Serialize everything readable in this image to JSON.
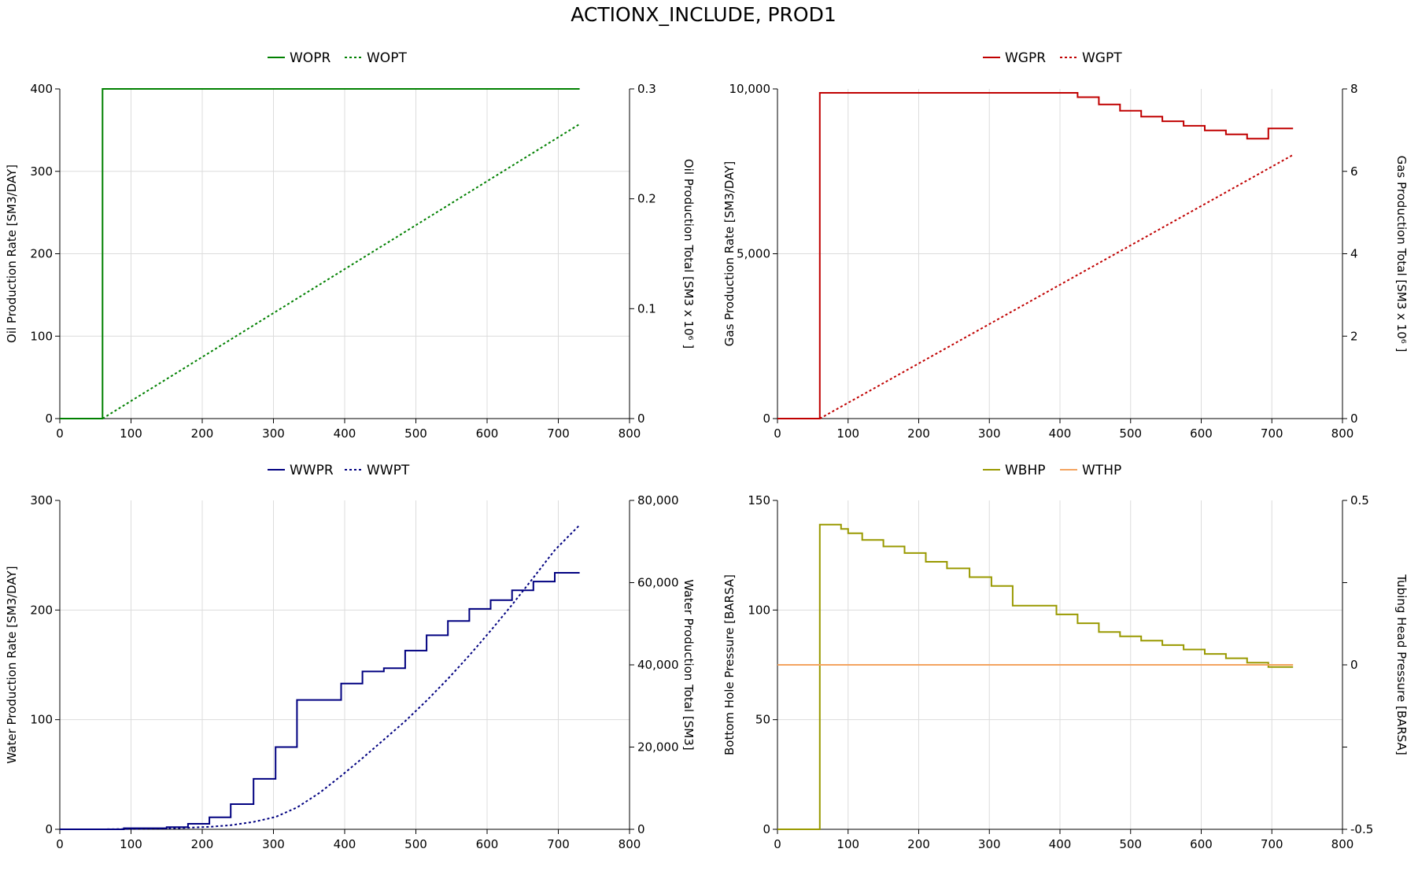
{
  "title": "ACTIONX_INCLUDE, PROD1",
  "colors": {
    "grid": "#dcdcdc",
    "axis": "#000000"
  },
  "chart_data": [
    {
      "type": "line",
      "xlim": [
        0,
        800
      ],
      "x_ticks": [
        0,
        100,
        200,
        300,
        400,
        500,
        600,
        700,
        800
      ],
      "x_tick_labels": [
        "0",
        "100",
        "200",
        "300",
        "400",
        "500",
        "600",
        "700",
        "800"
      ],
      "ylabel_left": "Oil Production Rate [SM3/DAY]",
      "ylabel_right": "Oil Production Total [SM3 x 10⁶ ]",
      "ylim_left": [
        0,
        400
      ],
      "ylim_right": [
        0,
        0.3
      ],
      "left_ticks": [
        0,
        100,
        200,
        300,
        400
      ],
      "left_tick_labels": [
        "0",
        "100",
        "200",
        "300",
        "400"
      ],
      "right_ticks": [
        0,
        0.1,
        0.2,
        0.3
      ],
      "right_tick_labels": [
        "0",
        "0.1",
        "0.2",
        "0.3"
      ],
      "legend_position": "top-center",
      "series": [
        {
          "name": "WOPR",
          "axis": "left",
          "style": "solid",
          "step": true,
          "color": "#008000",
          "x": [
            0,
            60,
            60,
            730
          ],
          "y": [
            0,
            0,
            400,
            400
          ]
        },
        {
          "name": "WOPT",
          "axis": "right",
          "style": "dotted",
          "step": false,
          "color": "#008000",
          "x": [
            60,
            730
          ],
          "y": [
            0,
            0.268
          ]
        }
      ]
    },
    {
      "type": "line",
      "xlim": [
        0,
        800
      ],
      "x_ticks": [
        0,
        100,
        200,
        300,
        400,
        500,
        600,
        700,
        800
      ],
      "x_tick_labels": [
        "0",
        "100",
        "200",
        "300",
        "400",
        "500",
        "600",
        "700",
        "800"
      ],
      "ylabel_left": "Gas Production Rate [SM3/DAY]",
      "ylabel_right": "Gas Production Total [SM3 x 10⁶ ]",
      "ylim_left": [
        0,
        10000
      ],
      "ylim_right": [
        0,
        8
      ],
      "left_ticks": [
        0,
        5000,
        10000
      ],
      "left_tick_labels": [
        "0",
        "5,000",
        "10,000"
      ],
      "right_ticks": [
        0,
        2,
        4,
        6,
        8
      ],
      "right_tick_labels": [
        "0",
        "2",
        "4",
        "6",
        "8"
      ],
      "legend_position": "top-center",
      "series": [
        {
          "name": "WGPR",
          "axis": "left",
          "style": "solid",
          "step": true,
          "color": "#c00000",
          "x": [
            0,
            60,
            60,
            425,
            425,
            455,
            455,
            485,
            485,
            515,
            515,
            545,
            545,
            575,
            575,
            605,
            605,
            635,
            635,
            665,
            665,
            695,
            695,
            730
          ],
          "y": [
            0,
            0,
            9880,
            9880,
            9750,
            9750,
            9530,
            9530,
            9340,
            9340,
            9160,
            9160,
            9020,
            9020,
            8880,
            8880,
            8740,
            8740,
            8620,
            8620,
            8490,
            8490,
            8800,
            8800
          ]
        },
        {
          "name": "WGPT",
          "axis": "right",
          "style": "dotted",
          "step": false,
          "color": "#c00000",
          "x": [
            60,
            730
          ],
          "y": [
            0,
            6.4
          ]
        }
      ]
    },
    {
      "type": "line",
      "xlim": [
        0,
        800
      ],
      "x_ticks": [
        0,
        100,
        200,
        300,
        400,
        500,
        600,
        700,
        800
      ],
      "x_tick_labels": [
        "0",
        "100",
        "200",
        "300",
        "400",
        "500",
        "600",
        "700",
        "800"
      ],
      "ylabel_left": "Water Production Rate [SM3/DAY]",
      "ylabel_right": "Water Production Total [SM3]",
      "ylim_left": [
        0,
        300
      ],
      "ylim_right": [
        0,
        80000
      ],
      "left_ticks": [
        0,
        100,
        200,
        300
      ],
      "left_tick_labels": [
        "0",
        "100",
        "200",
        "300"
      ],
      "right_ticks": [
        0,
        20000,
        40000,
        60000,
        80000
      ],
      "right_tick_labels": [
        "0",
        "20,000",
        "40,000",
        "60,000",
        "80,000"
      ],
      "legend_position": "top-center",
      "series": [
        {
          "name": "WWPR",
          "axis": "left",
          "style": "solid",
          "step": true,
          "color": "#000080",
          "x": [
            0,
            90,
            90,
            150,
            150,
            180,
            180,
            210,
            210,
            240,
            240,
            272,
            272,
            303,
            303,
            333,
            333,
            395,
            395,
            425,
            425,
            455,
            455,
            485,
            485,
            515,
            515,
            545,
            545,
            575,
            575,
            605,
            605,
            635,
            635,
            665,
            665,
            695,
            695,
            730
          ],
          "y": [
            0,
            0,
            1,
            1,
            2,
            2,
            5,
            5,
            11,
            11,
            23,
            23,
            46,
            46,
            75,
            75,
            118,
            118,
            133,
            133,
            144,
            144,
            147,
            147,
            163,
            163,
            177,
            177,
            190,
            190,
            201,
            201,
            209,
            209,
            218,
            218,
            226,
            226,
            234,
            234
          ]
        },
        {
          "name": "WWPT",
          "axis": "right",
          "style": "dotted",
          "step": false,
          "color": "#000080",
          "x": [
            60,
            150,
            210,
            240,
            272,
            303,
            333,
            365,
            395,
            425,
            455,
            485,
            515,
            545,
            575,
            605,
            635,
            665,
            695,
            730
          ],
          "y": [
            0,
            200,
            600,
            1000,
            1800,
            3000,
            5300,
            8900,
            13000,
            17300,
            21800,
            26300,
            31300,
            36600,
            42300,
            48300,
            54600,
            61200,
            67900,
            74000
          ]
        }
      ]
    },
    {
      "type": "line",
      "xlim": [
        0,
        800
      ],
      "x_ticks": [
        0,
        100,
        200,
        300,
        400,
        500,
        600,
        700,
        800
      ],
      "x_tick_labels": [
        "0",
        "100",
        "200",
        "300",
        "400",
        "500",
        "600",
        "700",
        "800"
      ],
      "ylabel_left": "Bottom Hole Pressure [BARSA]",
      "ylabel_right": "Tubing Head Pressure [BARSA]",
      "ylim_left": [
        0,
        150
      ],
      "ylim_right": [
        -0.5,
        0.5
      ],
      "left_ticks": [
        0,
        50,
        100,
        150
      ],
      "left_tick_labels": [
        "0",
        "50",
        "100",
        "150"
      ],
      "right_ticks": [
        -0.5,
        -0.25,
        0,
        0.25,
        0.5
      ],
      "right_tick_labels": [
        "-0.5",
        "",
        "0",
        "",
        "0.5"
      ],
      "legend_position": "top-center",
      "series": [
        {
          "name": "WBHP",
          "axis": "left",
          "style": "solid",
          "step": true,
          "color": "#999900",
          "x": [
            0,
            60,
            60,
            90,
            90,
            100,
            100,
            120,
            120,
            150,
            150,
            180,
            180,
            210,
            210,
            240,
            240,
            272,
            272,
            303,
            303,
            333,
            333,
            395,
            395,
            425,
            425,
            455,
            455,
            485,
            485,
            515,
            515,
            545,
            545,
            575,
            575,
            605,
            605,
            635,
            635,
            665,
            665,
            695,
            695,
            730
          ],
          "y": [
            0,
            0,
            139,
            139,
            137,
            137,
            135,
            135,
            132,
            132,
            129,
            129,
            126,
            126,
            122,
            122,
            119,
            119,
            115,
            115,
            111,
            111,
            102,
            102,
            98,
            98,
            94,
            94,
            90,
            90,
            88,
            88,
            86,
            86,
            84,
            84,
            82,
            82,
            80,
            80,
            78,
            78,
            76,
            76,
            74,
            74
          ]
        },
        {
          "name": "WTHP",
          "axis": "right",
          "style": "solid",
          "step": false,
          "color": "#f4a460",
          "x": [
            0,
            730
          ],
          "y": [
            0,
            0
          ]
        }
      ]
    }
  ]
}
